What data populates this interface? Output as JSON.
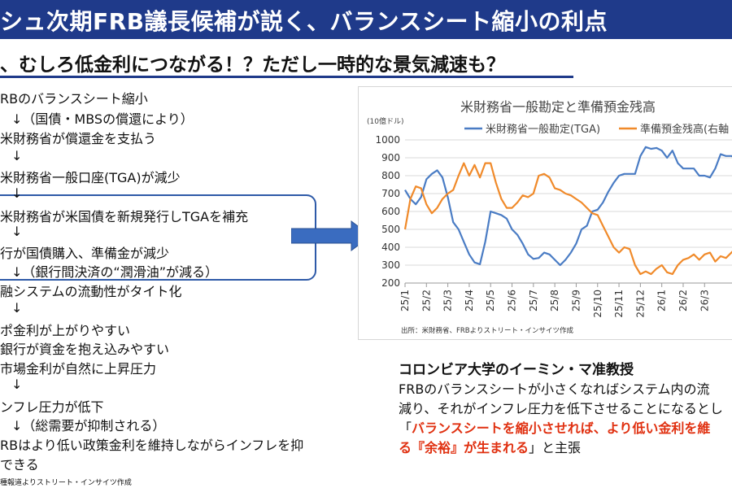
{
  "header": {
    "title": "シュ次期FRB議長候補が説く、バランスシート縮小の利点",
    "subtitle": "、むしろ低金利につながる！？ただし一時的な景気減速も？"
  },
  "flow": {
    "items": [
      "RBのバランスシート縮小",
      "↓（国債・MBSの償還により）",
      "米財務省が償還金を支払う",
      "↓",
      "米財務省一般口座(TGA)が減少",
      "↓",
      "米財務省が米国債を新規発行しTGAを補充",
      "↓",
      "行が国債購入、準備金が減少",
      "↓（銀行間決済の“潤滑油”が減る）",
      "融システムの流動性がタイト化",
      "↓",
      "ポ金利が上がりやすい",
      "銀行が資金を抱え込みやすい",
      "市場金利が自然に上昇圧力",
      "↓",
      "ンフレ圧力が低下",
      "↓（総需要が抑制される）",
      "RBはより低い政策金利を維持しながらインフレを抑",
      "できる"
    ],
    "source": "種報道よりストリート・インサイツ作成"
  },
  "chart_data": {
    "type": "line",
    "title": "米財務省一般勘定と準備預金残高",
    "unit_label": "(10億ドル)",
    "y_ticks": [
      200,
      300,
      400,
      500,
      600,
      700,
      800,
      900,
      1000
    ],
    "ylim": [
      200,
      1000
    ],
    "categories": [
      "25/1",
      "25/2",
      "25/3",
      "25/4",
      "25/5",
      "25/6",
      "25/7",
      "25/8",
      "25/9",
      "25/10",
      "25/11",
      "25/12",
      "26/1",
      "26/2",
      "26/3"
    ],
    "x_count": 15.7,
    "series": [
      {
        "name": "米財務省一般勘定(TGA)",
        "color": "#4a7cc4",
        "x": [
          0,
          0.25,
          0.5,
          0.75,
          1,
          1.25,
          1.5,
          1.75,
          2,
          2.25,
          2.5,
          2.75,
          3,
          3.25,
          3.5,
          3.75,
          4,
          4.25,
          4.5,
          4.75,
          5,
          5.25,
          5.5,
          5.75,
          6,
          6.25,
          6.5,
          6.75,
          7,
          7.25,
          7.5,
          7.75,
          8,
          8.25,
          8.5,
          8.75,
          9,
          9.25,
          9.5,
          9.75,
          10,
          10.25,
          10.5,
          10.75,
          11,
          11.25,
          11.5,
          11.75,
          12,
          12.25,
          12.5,
          12.75,
          13,
          13.25,
          13.5,
          13.75,
          14,
          14.25,
          14.5,
          14.75,
          15,
          15.25,
          15.5,
          15.7
        ],
        "values": [
          720,
          670,
          640,
          680,
          780,
          810,
          830,
          790,
          680,
          540,
          500,
          430,
          360,
          315,
          305,
          430,
          600,
          590,
          580,
          560,
          500,
          470,
          420,
          360,
          335,
          340,
          370,
          360,
          330,
          300,
          330,
          370,
          420,
          500,
          520,
          600,
          610,
          650,
          710,
          760,
          800,
          810,
          810,
          810,
          910,
          960,
          950,
          955,
          940,
          900,
          940,
          870,
          840,
          840,
          840,
          800,
          800,
          790,
          840,
          920,
          910,
          910,
          900,
          860
        ]
      },
      {
        "name": "準備預金残高(右軸",
        "color": "#f08a2a",
        "x": [
          0,
          0.25,
          0.5,
          0.75,
          1,
          1.25,
          1.5,
          1.75,
          2,
          2.25,
          2.5,
          2.75,
          3,
          3.25,
          3.5,
          3.75,
          4,
          4.25,
          4.5,
          4.75,
          5,
          5.25,
          5.5,
          5.75,
          6,
          6.25,
          6.5,
          6.75,
          7,
          7.25,
          7.5,
          7.75,
          8,
          8.25,
          8.5,
          8.75,
          9,
          9.25,
          9.5,
          9.75,
          10,
          10.25,
          10.5,
          10.75,
          11,
          11.25,
          11.5,
          11.75,
          12,
          12.25,
          12.5,
          12.75,
          13,
          13.25,
          13.5,
          13.75,
          14,
          14.25,
          14.5,
          14.75,
          15,
          15.25,
          15.5,
          15.7
        ],
        "values": [
          500,
          670,
          740,
          730,
          640,
          590,
          620,
          670,
          700,
          720,
          800,
          870,
          800,
          860,
          790,
          870,
          870,
          760,
          670,
          620,
          620,
          650,
          690,
          680,
          700,
          800,
          810,
          790,
          730,
          720,
          700,
          690,
          670,
          650,
          620,
          590,
          580,
          520,
          460,
          400,
          370,
          400,
          390,
          300,
          250,
          265,
          250,
          280,
          300,
          260,
          250,
          300,
          330,
          340,
          360,
          330,
          360,
          370,
          320,
          350,
          340,
          370,
          400,
          440
        ]
      }
    ],
    "source": "出所：米財務省、FRBよりストリート・インサイツ作成"
  },
  "professor": {
    "title": "コロンビア大学のイーミン・マ准教授",
    "line1": "FRBのバランスシートが小さくなればシステム内の流",
    "line2": "減り、それがインフレ圧力を低下させることになるとし",
    "line3_prefix": "「",
    "line3_red": "バランスシートを縮小させれば、より低い金利を維",
    "line4_red": "る『余裕』が生まれる",
    "line4_suffix": "」と主張"
  },
  "colors": {
    "title_bg": "#1f3a8a",
    "accent_blue": "#2e5aa8",
    "highlight_red": "#e03010"
  }
}
